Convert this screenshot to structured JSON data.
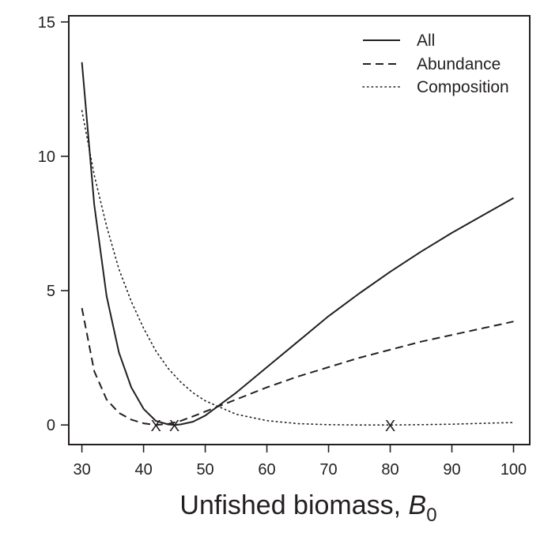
{
  "chart_data": {
    "type": "line",
    "title": "",
    "xlabel": "Unfished biomass, ",
    "xlabel_symbol": "B",
    "xlabel_subscript": "0",
    "ylabel": "",
    "xlim": [
      28,
      102.5
    ],
    "ylim": [
      -0.7,
      15.2
    ],
    "x_ticks": [
      30,
      40,
      50,
      60,
      70,
      80,
      90,
      100
    ],
    "x_tick_labels": [
      "30",
      "40",
      "50",
      "60",
      "70",
      "80",
      "90",
      "100"
    ],
    "y_ticks": [
      0,
      5,
      10,
      15
    ],
    "y_tick_labels": [
      "0",
      "5",
      "10",
      "15"
    ],
    "grid": false,
    "legend_position": "top-right",
    "series": [
      {
        "name": "All",
        "style": "solid",
        "x": [
          30,
          32,
          34,
          36,
          38,
          40,
          42,
          44,
          45,
          46,
          48,
          50,
          55,
          60,
          65,
          70,
          75,
          80,
          85,
          90,
          95,
          100
        ],
        "y": [
          13.5,
          8.2,
          4.8,
          2.7,
          1.4,
          0.6,
          0.15,
          0.02,
          0.0,
          0.02,
          0.12,
          0.35,
          1.2,
          2.15,
          3.1,
          4.05,
          4.9,
          5.7,
          6.45,
          7.15,
          7.8,
          8.45
        ]
      },
      {
        "name": "Abundance",
        "style": "dashed",
        "x": [
          30,
          32,
          34,
          36,
          38,
          40,
          42,
          44,
          46,
          48,
          50,
          55,
          60,
          65,
          70,
          75,
          80,
          85,
          90,
          95,
          100
        ],
        "y": [
          4.35,
          2.0,
          0.95,
          0.45,
          0.2,
          0.06,
          0.0,
          0.04,
          0.15,
          0.32,
          0.5,
          0.95,
          1.4,
          1.8,
          2.15,
          2.5,
          2.8,
          3.1,
          3.35,
          3.6,
          3.85
        ]
      },
      {
        "name": "Composition",
        "style": "dotted",
        "x": [
          30,
          32,
          34,
          36,
          38,
          40,
          42,
          44,
          46,
          48,
          50,
          55,
          60,
          65,
          70,
          75,
          80,
          85,
          90,
          95,
          100
        ],
        "y": [
          11.7,
          9.3,
          7.4,
          5.8,
          4.6,
          3.6,
          2.75,
          2.1,
          1.6,
          1.2,
          0.9,
          0.4,
          0.16,
          0.05,
          0.01,
          0.0,
          0.0,
          0.01,
          0.03,
          0.06,
          0.09
        ]
      }
    ],
    "markers": [
      {
        "label": "X",
        "x": 42,
        "y": 0
      },
      {
        "label": "X",
        "x": 45,
        "y": 0
      },
      {
        "label": "X",
        "x": 80,
        "y": 0
      }
    ],
    "colors": {
      "ink": "#231f20",
      "background": "#ffffff"
    }
  }
}
